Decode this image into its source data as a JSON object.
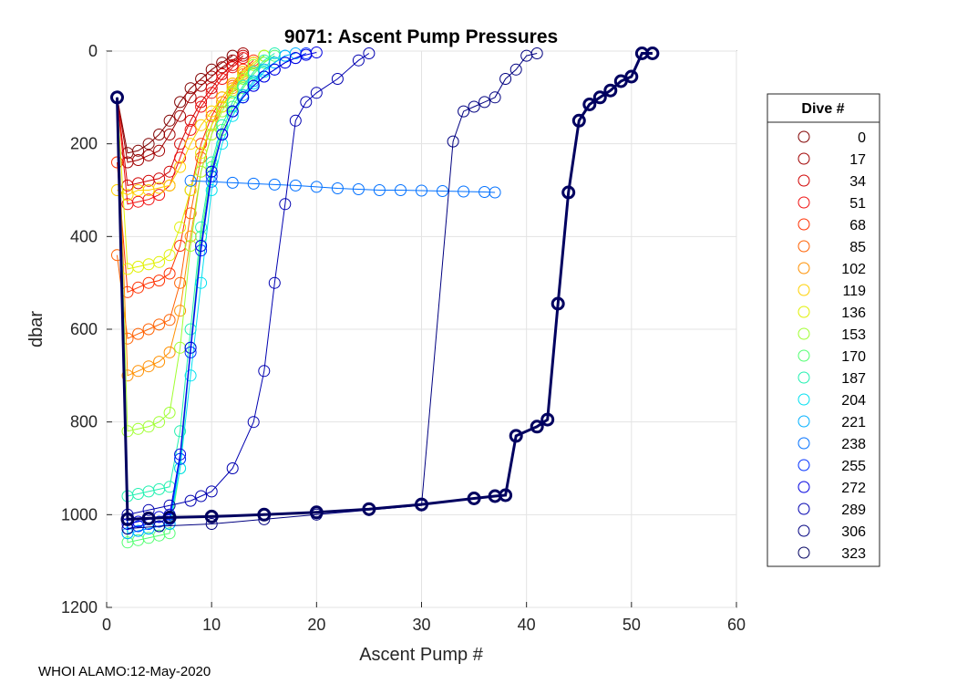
{
  "chart_data": {
    "type": "line",
    "title": "9071: Ascent Pump Pressures",
    "xlabel": "Ascent Pump #",
    "ylabel": "dbar",
    "xlim": [
      0,
      60
    ],
    "ylim": [
      0,
      1200
    ],
    "y_reversed": true,
    "xticks": [
      0,
      10,
      20,
      30,
      40,
      50,
      60
    ],
    "yticks": [
      0,
      200,
      400,
      600,
      800,
      1000,
      1200
    ],
    "grid": true,
    "marker": "open-circle",
    "legend": {
      "title": "Dive #",
      "placement": "right",
      "entries": [
        {
          "label": "0",
          "color": "#800000"
        },
        {
          "label": "17",
          "color": "#a00000"
        },
        {
          "label": "34",
          "color": "#d00000"
        },
        {
          "label": "51",
          "color": "#f01010"
        },
        {
          "label": "68",
          "color": "#ff3000"
        },
        {
          "label": "85",
          "color": "#ff6000"
        },
        {
          "label": "102",
          "color": "#ff9000"
        },
        {
          "label": "119",
          "color": "#ffd000"
        },
        {
          "label": "136",
          "color": "#e0f000"
        },
        {
          "label": "153",
          "color": "#a0ff30"
        },
        {
          "label": "170",
          "color": "#50ff70"
        },
        {
          "label": "187",
          "color": "#20f0b0"
        },
        {
          "label": "204",
          "color": "#00e0f0"
        },
        {
          "label": "221",
          "color": "#00b0ff"
        },
        {
          "label": "238",
          "color": "#0070ff"
        },
        {
          "label": "255",
          "color": "#0030ff"
        },
        {
          "label": "272",
          "color": "#0000e0"
        },
        {
          "label": "289",
          "color": "#0000b0"
        },
        {
          "label": "306",
          "color": "#000080"
        },
        {
          "label": "323",
          "color": "#000060"
        }
      ]
    },
    "series": [
      {
        "name": "0",
        "color": "#800000",
        "x": [
          1,
          2,
          3,
          4,
          5,
          6,
          7,
          8,
          9,
          10,
          11,
          12
        ],
        "y": [
          100,
          220,
          215,
          200,
          180,
          150,
          110,
          80,
          60,
          40,
          25,
          10
        ]
      },
      {
        "name": "17",
        "color": "#a00000",
        "x": [
          1,
          2,
          3,
          4,
          5,
          6,
          7,
          8,
          9,
          10,
          11,
          12,
          13
        ],
        "y": [
          100,
          240,
          235,
          225,
          215,
          180,
          140,
          100,
          75,
          55,
          35,
          20,
          5
        ]
      },
      {
        "name": "34",
        "color": "#d00000",
        "x": [
          1,
          2,
          3,
          4,
          5,
          6,
          7,
          8,
          9,
          10,
          11,
          12,
          13
        ],
        "y": [
          100,
          290,
          285,
          280,
          275,
          260,
          200,
          150,
          110,
          80,
          50,
          30,
          10
        ]
      },
      {
        "name": "51",
        "color": "#f01010",
        "x": [
          1,
          2,
          3,
          4,
          5,
          6,
          7,
          8,
          9,
          10,
          11,
          12,
          13
        ],
        "y": [
          100,
          330,
          325,
          320,
          310,
          290,
          230,
          170,
          120,
          90,
          60,
          35,
          15
        ]
      },
      {
        "name": "68",
        "color": "#ff3000",
        "x": [
          1,
          2,
          3,
          4,
          5,
          6,
          7,
          8,
          9,
          10,
          11,
          12,
          13,
          14
        ],
        "y": [
          240,
          520,
          510,
          500,
          495,
          480,
          420,
          300,
          200,
          140,
          100,
          70,
          40,
          20
        ]
      },
      {
        "name": "85",
        "color": "#ff6000",
        "x": [
          1,
          2,
          3,
          4,
          5,
          6,
          7,
          8,
          9,
          10,
          11,
          12,
          13,
          14
        ],
        "y": [
          440,
          620,
          610,
          600,
          590,
          580,
          500,
          350,
          230,
          160,
          110,
          75,
          45,
          25
        ]
      },
      {
        "name": "102",
        "color": "#ff9000",
        "x": [
          1,
          2,
          3,
          4,
          5,
          6,
          7,
          8,
          9,
          10,
          11,
          12,
          13,
          14
        ],
        "y": [
          100,
          700,
          690,
          680,
          670,
          650,
          560,
          400,
          260,
          180,
          120,
          80,
          50,
          25
        ]
      },
      {
        "name": "119",
        "color": "#ffd000",
        "x": [
          1,
          2,
          3,
          4,
          5,
          6,
          7,
          8,
          9,
          10,
          11,
          12,
          13,
          14,
          15
        ],
        "y": [
          300,
          310,
          300,
          300,
          295,
          290,
          250,
          200,
          160,
          130,
          100,
          70,
          45,
          25,
          10
        ]
      },
      {
        "name": "136",
        "color": "#e0f000",
        "x": [
          1,
          2,
          3,
          4,
          5,
          6,
          7,
          8,
          9,
          10,
          11,
          12,
          13,
          14,
          15
        ],
        "y": [
          100,
          470,
          465,
          460,
          455,
          440,
          380,
          300,
          220,
          160,
          120,
          85,
          55,
          30,
          10
        ]
      },
      {
        "name": "153",
        "color": "#a0ff30",
        "x": [
          1,
          2,
          3,
          4,
          5,
          6,
          7,
          8,
          9,
          10,
          11,
          12,
          13,
          14,
          15
        ],
        "y": [
          100,
          820,
          815,
          810,
          800,
          780,
          640,
          420,
          260,
          180,
          130,
          90,
          60,
          30,
          10
        ]
      },
      {
        "name": "170",
        "color": "#50ff70",
        "x": [
          1,
          2,
          3,
          4,
          5,
          6,
          7,
          8,
          9,
          10,
          11,
          12,
          13,
          14,
          15,
          16
        ],
        "y": [
          100,
          1060,
          1055,
          1050,
          1045,
          1040,
          900,
          640,
          400,
          250,
          170,
          120,
          80,
          50,
          25,
          10
        ]
      },
      {
        "name": "187",
        "color": "#20f0b0",
        "x": [
          1,
          2,
          3,
          4,
          5,
          6,
          7,
          8,
          9,
          10,
          11,
          12,
          13,
          14,
          15,
          16
        ],
        "y": [
          100,
          960,
          955,
          950,
          945,
          940,
          820,
          600,
          380,
          240,
          160,
          110,
          75,
          45,
          20,
          5
        ]
      },
      {
        "name": "204",
        "color": "#00e0f0",
        "x": [
          1,
          2,
          3,
          4,
          5,
          6,
          7,
          8,
          9,
          10,
          11,
          12,
          13,
          14,
          15,
          16,
          17
        ],
        "y": [
          100,
          1040,
          1035,
          1030,
          1025,
          1020,
          900,
          700,
          500,
          300,
          200,
          140,
          100,
          70,
          45,
          25,
          10
        ]
      },
      {
        "name": "221",
        "color": "#00b0ff",
        "x": [
          1,
          2,
          3,
          4,
          5,
          6,
          7,
          8,
          9,
          10,
          11,
          12,
          13,
          14,
          15,
          16,
          17,
          18
        ],
        "y": [
          100,
          1040,
          1035,
          1030,
          1025,
          1020,
          880,
          640,
          420,
          260,
          180,
          130,
          95,
          65,
          40,
          25,
          10,
          5
        ]
      },
      {
        "name": "238",
        "color": "#0070ff",
        "x": [
          8,
          10,
          12,
          14,
          16,
          18,
          20,
          22,
          24,
          26,
          28,
          30,
          32,
          34,
          36,
          37
        ],
        "y": [
          280,
          282,
          284,
          286,
          288,
          290,
          293,
          296,
          298,
          300,
          300,
          301,
          302,
          303,
          304,
          305
        ]
      },
      {
        "name": "255",
        "color": "#0030ff",
        "x": [
          1,
          2,
          3,
          4,
          5,
          6,
          7,
          8,
          9,
          10,
          11,
          12,
          13,
          14,
          15,
          16,
          17,
          18,
          19
        ],
        "y": [
          100,
          1030,
          1025,
          1020,
          1015,
          1010,
          880,
          650,
          430,
          270,
          180,
          130,
          100,
          75,
          55,
          40,
          25,
          15,
          5
        ]
      },
      {
        "name": "272",
        "color": "#0000e0",
        "x": [
          1,
          2,
          3,
          4,
          5,
          6,
          7,
          8,
          9,
          10,
          11,
          12,
          13,
          14,
          15,
          16,
          17,
          18,
          19,
          20
        ],
        "y": [
          100,
          1020,
          1015,
          1010,
          1005,
          1000,
          870,
          640,
          420,
          260,
          180,
          130,
          100,
          75,
          55,
          40,
          25,
          15,
          8,
          3
        ]
      },
      {
        "name": "289",
        "color": "#0000b0",
        "x": [
          2,
          4,
          6,
          8,
          9,
          10,
          12,
          14,
          15,
          16,
          17,
          18,
          19,
          20,
          22,
          24,
          25
        ],
        "y": [
          1000,
          990,
          980,
          970,
          960,
          950,
          900,
          800,
          690,
          500,
          330,
          150,
          110,
          90,
          60,
          20,
          5
        ]
      },
      {
        "name": "306",
        "color": "#000080",
        "x": [
          2,
          5,
          10,
          15,
          20,
          25,
          30,
          33,
          34,
          35,
          36,
          37,
          38,
          39,
          40,
          41
        ],
        "y": [
          1030,
          1025,
          1020,
          1010,
          1000,
          990,
          980,
          195,
          130,
          120,
          110,
          100,
          60,
          40,
          10,
          5
        ]
      },
      {
        "name": "323",
        "color": "#000060",
        "x": [
          1,
          2,
          4,
          6,
          10,
          15,
          20,
          25,
          30,
          35,
          37,
          38,
          39,
          41,
          42,
          43,
          44,
          45,
          46,
          47,
          48,
          49,
          50,
          51,
          52
        ],
        "y": [
          100,
          1010,
          1008,
          1006,
          1004,
          1000,
          995,
          988,
          978,
          965,
          960,
          958,
          830,
          810,
          795,
          545,
          305,
          150,
          115,
          100,
          85,
          65,
          55,
          5,
          5
        ]
      }
    ]
  },
  "footer": {
    "text": "WHOI ALAMO:12-May-2020"
  }
}
